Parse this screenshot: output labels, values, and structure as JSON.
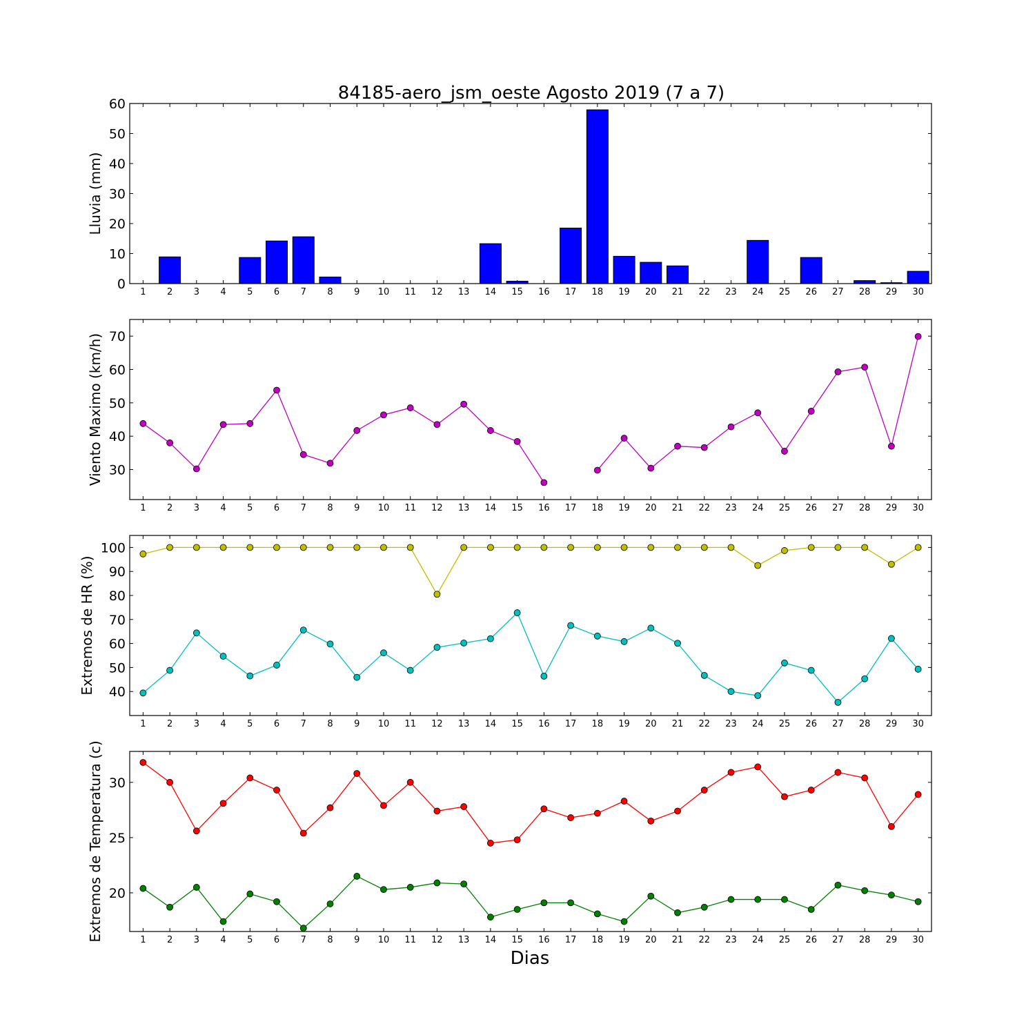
{
  "figure": {
    "title": "84185-aero_jsm_oeste Agosto 2019  (7 a 7)",
    "xlabel": "Dias",
    "x_ticks": [
      "1",
      "2",
      "3",
      "4",
      "5",
      "6",
      "7",
      "8",
      "9",
      "10",
      "11",
      "12",
      "13",
      "14",
      "15",
      "16",
      "17",
      "18",
      "19",
      "20",
      "21",
      "22",
      "23",
      "24",
      "25",
      "26",
      "27",
      "28",
      "29",
      "30"
    ]
  },
  "chart_data": [
    {
      "type": "bar",
      "ylabel": "Lluvia (mm)",
      "ylim": [
        0,
        60
      ],
      "yticks": [
        0,
        10,
        20,
        30,
        40,
        50,
        60
      ],
      "categories": [
        1,
        2,
        3,
        4,
        5,
        6,
        7,
        8,
        9,
        10,
        11,
        12,
        13,
        14,
        15,
        16,
        17,
        18,
        19,
        20,
        21,
        22,
        23,
        24,
        25,
        26,
        27,
        28,
        29,
        30
      ],
      "series": [
        {
          "color": "#0000ff",
          "values": [
            0,
            8.9,
            0,
            0,
            8.7,
            14.2,
            15.6,
            2.2,
            0,
            0,
            0,
            0,
            0,
            13.3,
            0.8,
            0,
            18.5,
            57.9,
            9.1,
            7.1,
            5.9,
            0,
            0,
            14.4,
            0,
            8.7,
            0,
            1.0,
            0.3,
            4.1
          ]
        }
      ],
      "grid": false
    },
    {
      "type": "line",
      "ylabel": "Viento Maximo (km/h)",
      "ylim": [
        21,
        75
      ],
      "yticks": [
        30,
        40,
        50,
        60,
        70
      ],
      "x": [
        1,
        2,
        3,
        4,
        5,
        6,
        7,
        8,
        9,
        10,
        11,
        12,
        13,
        14,
        15,
        16,
        17,
        18,
        19,
        20,
        21,
        22,
        23,
        24,
        25,
        26,
        27,
        28,
        29,
        30
      ],
      "series": [
        {
          "color": "#bf00bf",
          "values": [
            43.8,
            38.0,
            30.2,
            43.5,
            43.8,
            53.8,
            34.5,
            31.9,
            41.7,
            46.4,
            48.5,
            43.5,
            49.6,
            41.7,
            38.4,
            26.1,
            null,
            29.8,
            39.4,
            30.4,
            37.0,
            36.6,
            42.8,
            47.0,
            35.5,
            47.5,
            59.3,
            60.7,
            37.0,
            69.9
          ]
        }
      ],
      "grid": false
    },
    {
      "type": "line",
      "ylabel": "Extremos de HR (%)",
      "ylim": [
        30,
        105
      ],
      "yticks": [
        40,
        50,
        60,
        70,
        80,
        90,
        100
      ],
      "x": [
        1,
        2,
        3,
        4,
        5,
        6,
        7,
        8,
        9,
        10,
        11,
        12,
        13,
        14,
        15,
        16,
        17,
        18,
        19,
        20,
        21,
        22,
        23,
        24,
        25,
        26,
        27,
        28,
        29,
        30
      ],
      "series": [
        {
          "color": "#bfbf00",
          "values": [
            97.3,
            100,
            100,
            100,
            100,
            100,
            100,
            100,
            100,
            100,
            100,
            80.5,
            100,
            100,
            100,
            100,
            100,
            100,
            100,
            100,
            100,
            100,
            100,
            92.5,
            98.7,
            100,
            100,
            100,
            93.0,
            100
          ]
        },
        {
          "color": "#00bfbf",
          "values": [
            39.4,
            48.8,
            64.4,
            54.7,
            46.5,
            51.0,
            65.6,
            59.8,
            45.9,
            56.1,
            48.8,
            58.4,
            60.2,
            62.0,
            72.8,
            46.4,
            67.5,
            63.1,
            60.8,
            66.4,
            60.1,
            46.7,
            40.0,
            38.3,
            51.9,
            48.8,
            35.5,
            45.3,
            62.1,
            49.3
          ]
        }
      ],
      "grid": false
    },
    {
      "type": "line",
      "ylabel": "Extremos de Temperatura (c)",
      "ylim": [
        16.5,
        32.8
      ],
      "yticks": [
        20,
        25,
        30
      ],
      "x": [
        1,
        2,
        3,
        4,
        5,
        6,
        7,
        8,
        9,
        10,
        11,
        12,
        13,
        14,
        15,
        16,
        17,
        18,
        19,
        20,
        21,
        22,
        23,
        24,
        25,
        26,
        27,
        28,
        29,
        30
      ],
      "series": [
        {
          "color": "#ff0000",
          "values": [
            31.8,
            30.0,
            25.6,
            28.1,
            30.4,
            29.3,
            25.4,
            27.7,
            30.8,
            27.9,
            30.0,
            27.4,
            27.8,
            24.5,
            24.8,
            27.6,
            26.8,
            27.2,
            28.3,
            26.5,
            27.4,
            29.3,
            30.9,
            31.4,
            28.7,
            29.3,
            30.9,
            30.4,
            26.0,
            28.9
          ]
        },
        {
          "color": "#008000",
          "values": [
            20.4,
            18.7,
            20.5,
            17.4,
            19.9,
            19.2,
            16.8,
            19.0,
            21.5,
            20.3,
            20.5,
            20.9,
            20.8,
            17.8,
            18.5,
            19.1,
            19.1,
            18.1,
            17.4,
            19.7,
            18.2,
            18.7,
            19.4,
            19.4,
            19.4,
            18.5,
            20.7,
            20.2,
            19.8,
            19.2
          ]
        }
      ],
      "grid": false
    }
  ]
}
